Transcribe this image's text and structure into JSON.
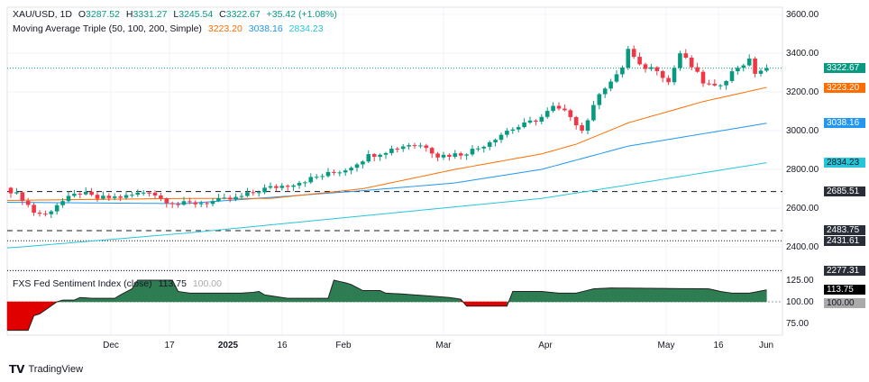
{
  "header": {
    "symbol": "XAU/USD, 1D",
    "open_label": "O",
    "open": "3287.52",
    "high_label": "H",
    "high": "3331.27",
    "low_label": "L",
    "low": "3245.54",
    "close_label": "C",
    "close": "3322.67",
    "change": "+35.42 (+1.08%)"
  },
  "ma": {
    "label": "Moving Average Triple (50, 100, 200, Simple)",
    "ma50": "3223.20",
    "ma100": "3038.16",
    "ma200": "2834.23"
  },
  "indicator": {
    "label": "FXS Fed Sentiment Index (close)",
    "value": "113.75",
    "base": "100.00"
  },
  "price_axis": [
    "3600.00",
    "3400.00",
    "3200.00",
    "3000.00",
    "2800.00",
    "2600.00",
    "2400.00"
  ],
  "indicator_axis": [
    "125.00",
    "100.00",
    "75.00"
  ],
  "price_labels": [
    {
      "text": "3322.67",
      "price": 3322.67,
      "bg": "#089981",
      "fg": "#ffffff"
    },
    {
      "text": "3223.20",
      "price": 3223.2,
      "bg": "#ff6d00",
      "fg": "#ffffff"
    },
    {
      "text": "3038.16",
      "price": 3038.16,
      "bg": "#2196f3",
      "fg": "#ffffff"
    },
    {
      "text": "2834.23",
      "price": 2834.23,
      "bg": "#26c6da",
      "fg": "#131722"
    },
    {
      "text": "2685.51",
      "price": 2685.51,
      "bg": "#2a2e39",
      "fg": "#ffffff"
    },
    {
      "text": "2483.75",
      "price": 2483.75,
      "bg": "#2a2e39",
      "fg": "#ffffff"
    },
    {
      "text": "2431.61",
      "price": 2431.61,
      "bg": "#2a2e39",
      "fg": "#ffffff"
    },
    {
      "text": "2277.31",
      "price": 2277.31,
      "bg": "#2a2e39",
      "fg": "#ffffff"
    }
  ],
  "time_axis": [
    "Dec",
    "17",
    "2025",
    "16",
    "Feb",
    "Mar",
    "Apr",
    "May",
    "16",
    "Jun"
  ],
  "branding": "TradingView",
  "chart_data": {
    "type": "candlestick",
    "title": "XAU/USD, 1D",
    "ylim": [
      2277,
      3600
    ],
    "close_path": [
      [
        0,
        2690
      ],
      [
        2,
        2650
      ],
      [
        4,
        2580
      ],
      [
        6,
        2565
      ],
      [
        8,
        2620
      ],
      [
        12,
        2680
      ],
      [
        15,
        2650
      ],
      [
        20,
        2660
      ],
      [
        24,
        2690
      ],
      [
        26,
        2650
      ],
      [
        29,
        2620
      ],
      [
        34,
        2630
      ],
      [
        39,
        2650
      ],
      [
        44,
        2700
      ],
      [
        48,
        2720
      ],
      [
        53,
        2760
      ],
      [
        58,
        2800
      ],
      [
        62,
        2870
      ],
      [
        69,
        2930
      ],
      [
        72,
        2920
      ],
      [
        74,
        2870
      ],
      [
        78,
        2880
      ],
      [
        81,
        2910
      ],
      [
        86,
        3000
      ],
      [
        89,
        3030
      ],
      [
        92,
        3070
      ],
      [
        94,
        3120
      ],
      [
        97,
        3080
      ],
      [
        99,
        3000
      ],
      [
        101,
        3120
      ],
      [
        102,
        3200
      ],
      [
        105,
        3280
      ],
      [
        106,
        3330
      ],
      [
        107,
        3420
      ],
      [
        109,
        3330
      ],
      [
        112,
        3320
      ],
      [
        114,
        3250
      ],
      [
        116,
        3400
      ],
      [
        118,
        3330
      ],
      [
        120,
        3250
      ],
      [
        122,
        3220
      ],
      [
        124,
        3270
      ],
      [
        126,
        3330
      ],
      [
        128,
        3360
      ],
      [
        129,
        3300
      ],
      [
        131,
        3322.67
      ]
    ],
    "ma50": [
      [
        0,
        2640
      ],
      [
        30,
        2650
      ],
      [
        45,
        2650
      ],
      [
        61,
        2700
      ],
      [
        77,
        2800
      ],
      [
        92,
        2880
      ],
      [
        98,
        2930
      ],
      [
        107,
        3040
      ],
      [
        120,
        3150
      ],
      [
        131,
        3223.2
      ]
    ],
    "ma100": [
      [
        0,
        2630
      ],
      [
        30,
        2623
      ],
      [
        61,
        2690
      ],
      [
        77,
        2730
      ],
      [
        92,
        2800
      ],
      [
        107,
        2920
      ],
      [
        131,
        3038.16
      ]
    ],
    "ma200": [
      [
        0,
        2395
      ],
      [
        30,
        2470
      ],
      [
        61,
        2560
      ],
      [
        92,
        2650
      ],
      [
        107,
        2720
      ],
      [
        131,
        2834.23
      ]
    ],
    "levels": [
      {
        "price": 2685.51,
        "style": "dashed"
      },
      {
        "price": 2483.75,
        "style": "dashed"
      },
      {
        "price": 2431.61,
        "style": "dotted"
      },
      {
        "price": 2277.31,
        "style": "dotted"
      }
    ],
    "sentiment": [
      [
        0,
        67
      ],
      [
        3,
        67
      ],
      [
        4,
        84
      ],
      [
        5,
        86
      ],
      [
        8,
        100
      ],
      [
        9,
        102
      ],
      [
        11,
        102
      ],
      [
        12,
        105
      ],
      [
        14,
        104
      ],
      [
        18,
        104
      ],
      [
        19,
        108
      ],
      [
        21,
        115
      ],
      [
        22,
        125
      ],
      [
        28,
        125
      ],
      [
        29,
        112
      ],
      [
        31,
        110
      ],
      [
        40,
        110
      ],
      [
        42,
        111
      ],
      [
        43,
        112
      ],
      [
        44,
        108
      ],
      [
        48,
        104
      ],
      [
        55,
        104
      ],
      [
        56,
        125
      ],
      [
        58,
        122
      ],
      [
        59,
        120
      ],
      [
        61,
        113
      ],
      [
        64,
        113
      ],
      [
        65,
        110
      ],
      [
        68,
        109
      ],
      [
        76,
        105
      ],
      [
        78,
        103
      ],
      [
        79,
        95
      ],
      [
        86,
        95
      ],
      [
        87,
        112
      ],
      [
        92,
        112
      ],
      [
        95,
        110
      ],
      [
        98,
        110
      ],
      [
        101,
        115
      ],
      [
        104,
        116
      ],
      [
        121,
        115
      ],
      [
        123,
        112
      ],
      [
        125,
        110
      ],
      [
        128,
        110
      ],
      [
        131,
        113.75
      ]
    ],
    "sentiment_ylim": [
      75,
      125
    ],
    "colors": {
      "up": "#089981",
      "down": "#f23645",
      "ma50": "#ff6d00",
      "ma100": "#2196f3",
      "ma200": "#26c6da",
      "pos": "#2e7d52",
      "neg": "#e00000"
    }
  }
}
